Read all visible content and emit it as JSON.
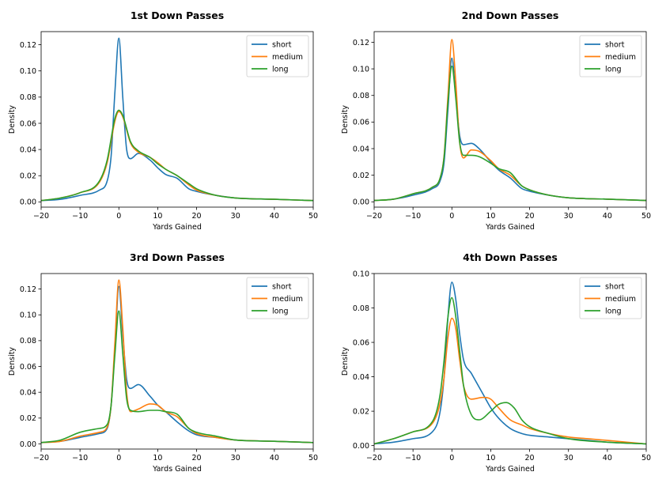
{
  "colors": {
    "short": "#1f77b4",
    "medium": "#ff7f0e",
    "long": "#2ca02c"
  },
  "chart_data": [
    {
      "type": "line",
      "title": "1st Down Passes",
      "xlabel": "Yards Gained",
      "ylabel": "Density",
      "xlim": [
        -20,
        50
      ],
      "ylim": [
        -0.004,
        0.13
      ],
      "xticks": [
        -20,
        -10,
        0,
        10,
        20,
        30,
        40,
        50
      ],
      "xtick_labels": [
        "−20",
        "−10",
        "0",
        "10",
        "20",
        "30",
        "40",
        "50"
      ],
      "yticks": [
        0.0,
        0.02,
        0.04,
        0.06,
        0.08,
        0.1,
        0.12
      ],
      "ytick_labels": [
        "0.00",
        "0.02",
        "0.04",
        "0.06",
        "0.08",
        "0.10",
        "0.12"
      ],
      "legend": "top-right",
      "series": [
        {
          "name": "short",
          "x": [
            -20,
            -15,
            -10,
            -5,
            -3,
            -2,
            -1,
            0,
            1,
            2,
            3,
            5,
            8,
            10,
            12,
            15,
            18,
            20,
            25,
            30,
            40,
            50
          ],
          "y": [
            0.001,
            0.002,
            0.005,
            0.009,
            0.016,
            0.035,
            0.085,
            0.125,
            0.08,
            0.04,
            0.033,
            0.037,
            0.032,
            0.026,
            0.021,
            0.018,
            0.01,
            0.008,
            0.005,
            0.003,
            0.002,
            0.001
          ]
        },
        {
          "name": "medium",
          "x": [
            -20,
            -15,
            -10,
            -5,
            -3,
            -1,
            0,
            1,
            3,
            5,
            8,
            10,
            12,
            15,
            18,
            20,
            25,
            30,
            40,
            50
          ],
          "y": [
            0.001,
            0.003,
            0.007,
            0.015,
            0.03,
            0.062,
            0.069,
            0.065,
            0.045,
            0.038,
            0.034,
            0.03,
            0.025,
            0.02,
            0.013,
            0.009,
            0.005,
            0.003,
            0.002,
            0.001
          ]
        },
        {
          "name": "long",
          "x": [
            -20,
            -15,
            -10,
            -5,
            -3,
            -1,
            0,
            1,
            3,
            5,
            8,
            10,
            12,
            15,
            18,
            20,
            25,
            30,
            40,
            50
          ],
          "y": [
            0.001,
            0.003,
            0.007,
            0.016,
            0.032,
            0.064,
            0.07,
            0.066,
            0.046,
            0.039,
            0.034,
            0.029,
            0.025,
            0.02,
            0.014,
            0.01,
            0.005,
            0.003,
            0.002,
            0.001
          ]
        }
      ]
    },
    {
      "type": "line",
      "title": "2nd Down Passes",
      "xlabel": "Yards Gained",
      "ylabel": "Density",
      "xlim": [
        -20,
        50
      ],
      "ylim": [
        -0.004,
        0.128
      ],
      "xticks": [
        -20,
        -10,
        0,
        10,
        20,
        30,
        40,
        50
      ],
      "xtick_labels": [
        "−20",
        "−10",
        "0",
        "10",
        "20",
        "30",
        "40",
        "50"
      ],
      "yticks": [
        0.0,
        0.02,
        0.04,
        0.06,
        0.08,
        0.1,
        0.12
      ],
      "ytick_labels": [
        "0.00",
        "0.02",
        "0.04",
        "0.06",
        "0.08",
        "0.10",
        "0.12"
      ],
      "legend": "top-right",
      "series": [
        {
          "name": "short",
          "x": [
            -20,
            -15,
            -10,
            -5,
            -3,
            -2,
            -1,
            0,
            1,
            2,
            3,
            5,
            7,
            10,
            12,
            15,
            18,
            20,
            25,
            30,
            40,
            50
          ],
          "y": [
            0.001,
            0.002,
            0.005,
            0.01,
            0.016,
            0.03,
            0.07,
            0.108,
            0.08,
            0.05,
            0.043,
            0.044,
            0.04,
            0.03,
            0.024,
            0.018,
            0.01,
            0.008,
            0.005,
            0.003,
            0.002,
            0.001
          ]
        },
        {
          "name": "medium",
          "x": [
            -20,
            -15,
            -10,
            -5,
            -3,
            -2,
            -1,
            0,
            1,
            2,
            3,
            5,
            7,
            10,
            12,
            15,
            18,
            20,
            25,
            30,
            40,
            50
          ],
          "y": [
            0.001,
            0.002,
            0.006,
            0.011,
            0.018,
            0.035,
            0.08,
            0.122,
            0.09,
            0.045,
            0.033,
            0.039,
            0.038,
            0.031,
            0.025,
            0.02,
            0.012,
            0.009,
            0.005,
            0.003,
            0.002,
            0.001
          ]
        },
        {
          "name": "long",
          "x": [
            -20,
            -15,
            -10,
            -5,
            -3,
            -2,
            -1,
            0,
            1,
            2,
            3,
            5,
            7,
            10,
            12,
            15,
            18,
            20,
            25,
            30,
            40,
            50
          ],
          "y": [
            0.001,
            0.002,
            0.006,
            0.011,
            0.018,
            0.034,
            0.075,
            0.102,
            0.078,
            0.045,
            0.035,
            0.035,
            0.034,
            0.029,
            0.025,
            0.022,
            0.012,
            0.009,
            0.005,
            0.003,
            0.002,
            0.001
          ]
        }
      ]
    },
    {
      "type": "line",
      "title": "3rd Down Passes",
      "xlabel": "Yards Gained",
      "ylabel": "Density",
      "xlim": [
        -20,
        50
      ],
      "ylim": [
        -0.004,
        0.132
      ],
      "xticks": [
        -20,
        -10,
        0,
        10,
        20,
        30,
        40,
        50
      ],
      "xtick_labels": [
        "−20",
        "−10",
        "0",
        "10",
        "20",
        "30",
        "40",
        "50"
      ],
      "yticks": [
        0.0,
        0.02,
        0.04,
        0.06,
        0.08,
        0.1,
        0.12
      ],
      "ytick_labels": [
        "0.00",
        "0.02",
        "0.04",
        "0.06",
        "0.08",
        "0.10",
        "0.12"
      ],
      "legend": "top-right",
      "series": [
        {
          "name": "short",
          "x": [
            -20,
            -15,
            -10,
            -5,
            -3,
            -2,
            -1,
            0,
            1,
            2,
            3,
            5,
            8,
            10,
            12,
            15,
            18,
            20,
            25,
            30,
            40,
            50
          ],
          "y": [
            0.001,
            0.002,
            0.005,
            0.008,
            0.012,
            0.03,
            0.075,
            0.122,
            0.085,
            0.05,
            0.043,
            0.046,
            0.037,
            0.03,
            0.025,
            0.017,
            0.01,
            0.007,
            0.005,
            0.003,
            0.002,
            0.001
          ]
        },
        {
          "name": "medium",
          "x": [
            -20,
            -15,
            -10,
            -5,
            -3,
            -2,
            -1,
            0,
            1,
            2,
            3,
            5,
            8,
            10,
            12,
            15,
            18,
            20,
            25,
            30,
            40,
            50
          ],
          "y": [
            0.001,
            0.002,
            0.006,
            0.009,
            0.013,
            0.03,
            0.08,
            0.127,
            0.09,
            0.04,
            0.025,
            0.027,
            0.031,
            0.03,
            0.025,
            0.021,
            0.012,
            0.008,
            0.005,
            0.003,
            0.002,
            0.001
          ]
        },
        {
          "name": "long",
          "x": [
            -20,
            -15,
            -10,
            -5,
            -3,
            -2,
            -1,
            0,
            1,
            2,
            3,
            5,
            8,
            10,
            12,
            15,
            18,
            20,
            25,
            30,
            40,
            50
          ],
          "y": [
            0.001,
            0.003,
            0.009,
            0.012,
            0.015,
            0.03,
            0.07,
            0.103,
            0.07,
            0.035,
            0.026,
            0.025,
            0.026,
            0.026,
            0.025,
            0.023,
            0.012,
            0.009,
            0.006,
            0.003,
            0.002,
            0.001
          ]
        }
      ]
    },
    {
      "type": "line",
      "title": "4th Down Passes",
      "xlabel": "Yards Gained",
      "ylabel": "Density",
      "xlim": [
        -20,
        50
      ],
      "ylim": [
        -0.002,
        0.1
      ],
      "xticks": [
        -20,
        -10,
        0,
        10,
        20,
        30,
        40,
        50
      ],
      "xtick_labels": [
        "−20",
        "−10",
        "0",
        "10",
        "20",
        "30",
        "40",
        "50"
      ],
      "yticks": [
        0.0,
        0.02,
        0.04,
        0.06,
        0.08,
        0.1
      ],
      "ytick_labels": [
        "0.00",
        "0.02",
        "0.04",
        "0.06",
        "0.08",
        "0.10"
      ],
      "legend": "top-right",
      "series": [
        {
          "name": "short",
          "x": [
            -20,
            -15,
            -10,
            -5,
            -3,
            -2,
            -1,
            0,
            1,
            2,
            3,
            5,
            8,
            10,
            12,
            15,
            18,
            20,
            25,
            30,
            35,
            40,
            50
          ],
          "y": [
            0.001,
            0.002,
            0.004,
            0.008,
            0.02,
            0.04,
            0.075,
            0.095,
            0.085,
            0.065,
            0.05,
            0.042,
            0.03,
            0.022,
            0.016,
            0.01,
            0.007,
            0.006,
            0.005,
            0.004,
            0.003,
            0.002,
            0.001
          ]
        },
        {
          "name": "medium",
          "x": [
            -20,
            -15,
            -10,
            -5,
            -3,
            -2,
            -1,
            0,
            1,
            2,
            3,
            5,
            8,
            10,
            12,
            15,
            18,
            20,
            25,
            30,
            35,
            40,
            50
          ],
          "y": [
            0.001,
            0.004,
            0.008,
            0.013,
            0.025,
            0.04,
            0.063,
            0.074,
            0.068,
            0.05,
            0.035,
            0.027,
            0.028,
            0.027,
            0.022,
            0.015,
            0.012,
            0.01,
            0.007,
            0.005,
            0.004,
            0.003,
            0.001
          ]
        },
        {
          "name": "long",
          "x": [
            -20,
            -15,
            -10,
            -5,
            -3,
            -2,
            -1,
            0,
            1,
            2,
            3,
            5,
            7,
            10,
            12,
            14,
            16,
            18,
            20,
            25,
            30,
            40,
            50
          ],
          "y": [
            0.001,
            0.004,
            0.008,
            0.014,
            0.03,
            0.05,
            0.075,
            0.086,
            0.075,
            0.055,
            0.035,
            0.018,
            0.015,
            0.02,
            0.024,
            0.025,
            0.022,
            0.015,
            0.011,
            0.007,
            0.004,
            0.002,
            0.001
          ]
        }
      ]
    }
  ]
}
